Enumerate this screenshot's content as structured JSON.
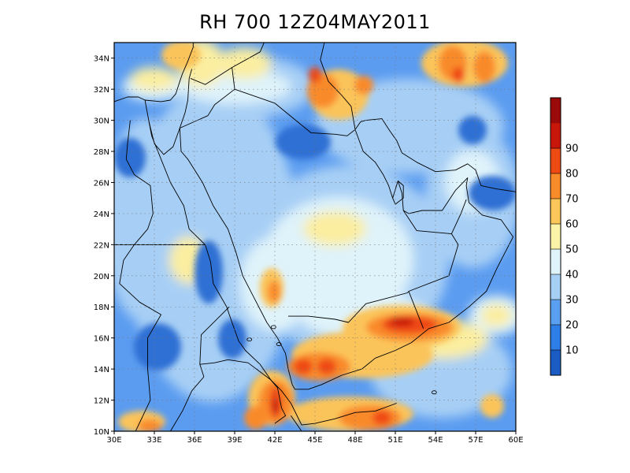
{
  "title": "RH 700 12Z04MAY2011",
  "map": {
    "lon_range": [
      30,
      60
    ],
    "lat_range": [
      10,
      35
    ],
    "x_ticks": [
      "30E",
      "33E",
      "36E",
      "39E",
      "42E",
      "45E",
      "48E",
      "51E",
      "54E",
      "57E",
      "60E"
    ],
    "y_ticks": [
      "10N",
      "12N",
      "14N",
      "16N",
      "18N",
      "20N",
      "22N",
      "24N",
      "26N",
      "28N",
      "30N",
      "32N",
      "34N"
    ],
    "grid": true
  },
  "colorbar": {
    "labels": [
      "10",
      "20",
      "30",
      "40",
      "50",
      "60",
      "70",
      "80",
      "90"
    ],
    "colors": [
      "#1a5bc4",
      "#2d7ee6",
      "#5aa0f0",
      "#a6cff5",
      "#dff3fa",
      "#fbf3a8",
      "#fbc65a",
      "#f98c2a",
      "#ee4a14",
      "#c8160a",
      "#9b0a0a"
    ]
  },
  "field_colors": {
    "dark_blue": "#2f6fd4",
    "mid_blue": "#5b9cf0",
    "light_blue": "#a7cff5",
    "very_light": "#dff3fa",
    "yellow": "#fbeea0",
    "light_orange": "#fbc45a",
    "orange": "#f98a2a",
    "red_orange": "#ef4a14",
    "red": "#c9180a"
  }
}
